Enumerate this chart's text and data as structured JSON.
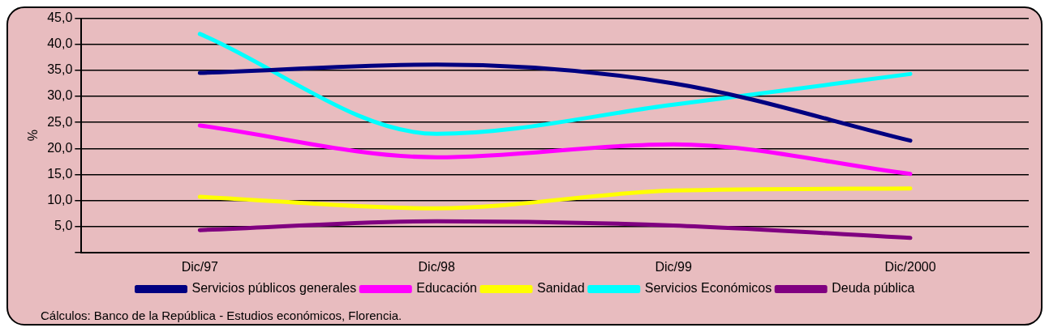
{
  "chart_data": {
    "type": "line",
    "ylabel": "%",
    "categories": [
      "Dic/97",
      "Dic/98",
      "Dic/99",
      "Dic/2000"
    ],
    "series": [
      {
        "name": "Servicios públicos generales",
        "color": "#000080",
        "values": [
          34.5,
          36.1,
          32.5,
          21.5
        ]
      },
      {
        "name": "Educación",
        "color": "#ff00ff",
        "values": [
          24.4,
          18.3,
          20.8,
          15.1
        ]
      },
      {
        "name": "Sanidad",
        "color": "#ffff00",
        "values": [
          10.7,
          8.5,
          11.9,
          12.3
        ]
      },
      {
        "name": "Servicios Económicos",
        "color": "#00ffff",
        "values": [
          42.0,
          22.8,
          28.4,
          34.3
        ]
      },
      {
        "name": "Deuda pública",
        "color": "#800080",
        "values": [
          4.3,
          6.0,
          5.2,
          2.8
        ]
      }
    ],
    "ylim": [
      0,
      45
    ],
    "yticks": [
      {
        "value": 0,
        "label": null
      },
      {
        "value": 5,
        "label": "5,0"
      },
      {
        "value": 10,
        "label": "10,0"
      },
      {
        "value": 15,
        "label": "15,0"
      },
      {
        "value": 20,
        "label": "20,0"
      },
      {
        "value": 25,
        "label": "25,0"
      },
      {
        "value": 30,
        "label": "30,0"
      },
      {
        "value": 35,
        "label": "35,0"
      },
      {
        "value": 40,
        "label": "40,0"
      },
      {
        "value": 45,
        "label": "45,0"
      }
    ],
    "grid": "y",
    "legend": "bottom",
    "marker": "none",
    "line_style": "solid",
    "annotations": [
      "Cálculos: Banco de la República - Estudios económicos, Florencia."
    ]
  }
}
